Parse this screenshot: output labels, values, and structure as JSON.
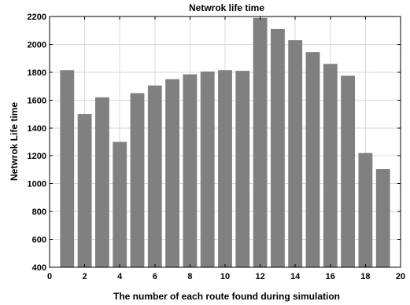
{
  "chart_data": {
    "type": "bar",
    "title": "Netwrok life time",
    "xlabel": "The number of each route found during simulation",
    "ylabel": "Netwrok Life time",
    "x": [
      1,
      2,
      3,
      4,
      5,
      6,
      7,
      8,
      9,
      10,
      11,
      12,
      13,
      14,
      15,
      16,
      17,
      18,
      19
    ],
    "values": [
      1815,
      1500,
      1620,
      1300,
      1650,
      1705,
      1750,
      1785,
      1805,
      1815,
      1810,
      2190,
      2110,
      2030,
      1945,
      1860,
      1775,
      1220,
      1105
    ],
    "xlim": [
      0,
      20
    ],
    "ylim": [
      400,
      2200
    ],
    "xticks": [
      0,
      2,
      4,
      6,
      8,
      10,
      12,
      14,
      16,
      18,
      20
    ],
    "yticks": [
      400,
      600,
      800,
      1000,
      1200,
      1400,
      1600,
      1800,
      2000,
      2200
    ],
    "grid": true,
    "bar_color": "#808080"
  }
}
